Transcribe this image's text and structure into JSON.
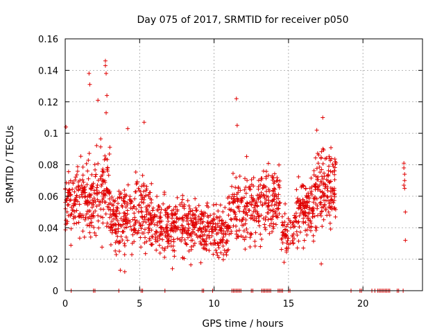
{
  "chart_data": {
    "type": "scatter",
    "title": "Day 075 of 2017, SRMTID for receiver p050",
    "xlabel": "GPS time / hours",
    "ylabel": "SRMTID / TECUs",
    "xlim": [
      0,
      24
    ],
    "ylim": [
      0,
      0.16
    ],
    "x_ticks": [
      0,
      5,
      10,
      15,
      20
    ],
    "x_tick_labels": [
      "0",
      "5",
      "10",
      "15",
      "20"
    ],
    "y_ticks": [
      0,
      0.02,
      0.04,
      0.06,
      0.08,
      0.1,
      0.12,
      0.14,
      0.16
    ],
    "y_tick_labels": [
      "0",
      "0.02",
      "0.04",
      "0.06",
      "0.08",
      "0.1",
      "0.12",
      "0.14",
      "0.16"
    ],
    "grid": true,
    "marker": "+",
    "series_color": "#e00000",
    "zero_value_times": [
      0.4,
      1.9,
      2.0,
      3.6,
      5.1,
      5.2,
      6.7,
      9.2,
      9.3,
      9.9,
      11.2,
      11.3,
      11.4,
      11.5,
      11.6,
      11.7,
      11.8,
      12.5,
      12.6,
      13.2,
      13.3,
      13.4,
      13.5,
      13.6,
      13.7,
      13.8,
      14.3,
      14.4,
      14.5,
      14.6,
      15.0,
      15.1,
      19.2,
      19.8,
      19.9,
      20.6,
      20.8,
      21.0,
      21.1,
      21.2,
      21.3,
      21.4,
      21.5,
      21.6,
      21.7,
      21.8,
      22.3,
      22.4,
      22.7
    ],
    "density_segments": [
      {
        "t0": 0.0,
        "t1": 2.0,
        "center": 0.058,
        "spread": 0.02,
        "n": 180
      },
      {
        "t0": 2.0,
        "t1": 3.0,
        "center": 0.065,
        "spread": 0.025,
        "n": 90
      },
      {
        "t0": 3.0,
        "t1": 4.0,
        "center": 0.045,
        "spread": 0.018,
        "n": 90
      },
      {
        "t0": 4.0,
        "t1": 6.0,
        "center": 0.05,
        "spread": 0.02,
        "n": 170
      },
      {
        "t0": 6.0,
        "t1": 9.0,
        "center": 0.042,
        "spread": 0.017,
        "n": 250
      },
      {
        "t0": 9.0,
        "t1": 11.0,
        "center": 0.038,
        "spread": 0.015,
        "n": 170
      },
      {
        "t0": 11.0,
        "t1": 13.0,
        "center": 0.052,
        "spread": 0.02,
        "n": 160
      },
      {
        "t0": 13.0,
        "t1": 14.5,
        "center": 0.055,
        "spread": 0.02,
        "n": 120
      },
      {
        "t0": 14.5,
        "t1": 15.5,
        "center": 0.036,
        "spread": 0.012,
        "n": 60
      },
      {
        "t0": 15.5,
        "t1": 16.7,
        "center": 0.05,
        "spread": 0.018,
        "n": 120
      },
      {
        "t0": 16.7,
        "t1": 18.2,
        "center": 0.065,
        "spread": 0.02,
        "n": 150
      }
    ],
    "notable_points": [
      {
        "x": 2.7,
        "y": 0.146
      },
      {
        "x": 2.7,
        "y": 0.143
      },
      {
        "x": 2.75,
        "y": 0.138
      },
      {
        "x": 1.6,
        "y": 0.138
      },
      {
        "x": 1.65,
        "y": 0.131
      },
      {
        "x": 2.8,
        "y": 0.124
      },
      {
        "x": 2.2,
        "y": 0.121
      },
      {
        "x": 11.5,
        "y": 0.122
      },
      {
        "x": 2.75,
        "y": 0.113
      },
      {
        "x": 17.3,
        "y": 0.11
      },
      {
        "x": 5.3,
        "y": 0.107
      },
      {
        "x": 11.55,
        "y": 0.105
      },
      {
        "x": 0.05,
        "y": 0.104
      },
      {
        "x": 4.2,
        "y": 0.103
      },
      {
        "x": 16.9,
        "y": 0.102
      },
      {
        "x": 3.7,
        "y": 0.013
      },
      {
        "x": 4.0,
        "y": 0.012
      },
      {
        "x": 17.2,
        "y": 0.017
      },
      {
        "x": 7.2,
        "y": 0.014
      },
      {
        "x": 14.7,
        "y": 0.018
      },
      {
        "x": 22.75,
        "y": 0.081
      },
      {
        "x": 22.75,
        "y": 0.078
      },
      {
        "x": 22.8,
        "y": 0.074
      },
      {
        "x": 22.8,
        "y": 0.07
      },
      {
        "x": 22.75,
        "y": 0.067
      },
      {
        "x": 22.8,
        "y": 0.065
      },
      {
        "x": 22.85,
        "y": 0.05
      },
      {
        "x": 22.85,
        "y": 0.032
      }
    ]
  }
}
